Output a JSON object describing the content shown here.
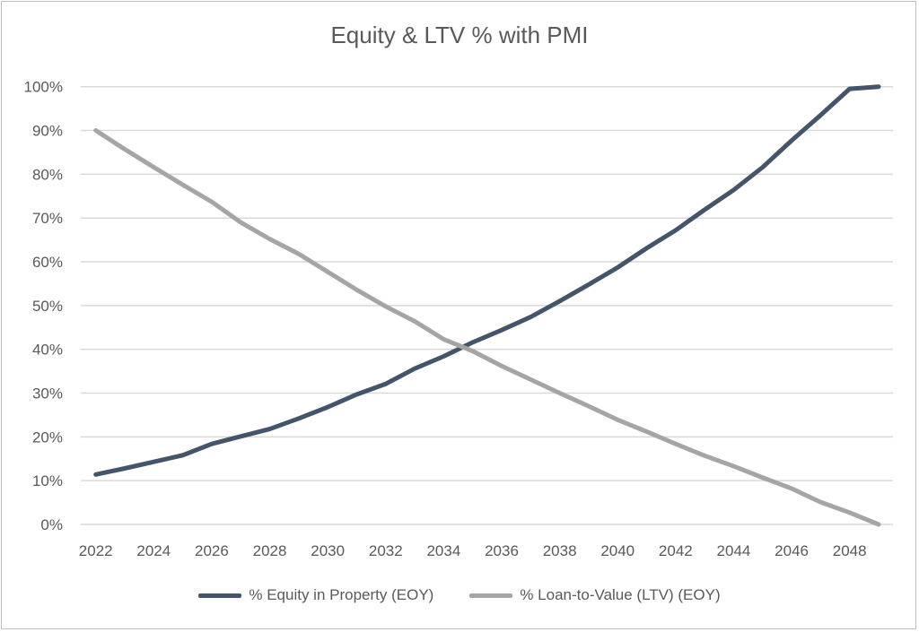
{
  "chart_data": {
    "type": "line",
    "title": "Equity & LTV % with PMI",
    "xlabel": "",
    "ylabel": "",
    "x": [
      2022,
      2023,
      2024,
      2025,
      2026,
      2027,
      2028,
      2029,
      2030,
      2031,
      2032,
      2033,
      2034,
      2035,
      2036,
      2037,
      2038,
      2039,
      2040,
      2041,
      2042,
      2043,
      2044,
      2045,
      2046,
      2047,
      2048,
      2049
    ],
    "x_tick_labels": [
      "2022",
      "2024",
      "2026",
      "2028",
      "2030",
      "2032",
      "2034",
      "2036",
      "2038",
      "2040",
      "2042",
      "2044",
      "2046",
      "2048"
    ],
    "y_tick_labels": [
      "0%",
      "10%",
      "20%",
      "30%",
      "40%",
      "50%",
      "60%",
      "70%",
      "80%",
      "90%",
      "100%"
    ],
    "ylim": [
      0,
      100
    ],
    "grid": "horizontal",
    "legend_position": "bottom",
    "series": [
      {
        "name": "% Equity in Property (EOY)",
        "color": "#44546a",
        "values": [
          11.4,
          12.8,
          14.3,
          15.8,
          18.4,
          20.1,
          21.8,
          24.2,
          26.8,
          29.7,
          32.1,
          35.6,
          38.4,
          41.6,
          44.4,
          47.4,
          51.0,
          54.8,
          58.7,
          63.1,
          67.2,
          71.9,
          76.4,
          81.6,
          87.7,
          93.5,
          99.5,
          100
        ]
      },
      {
        "name": "% Loan-to-Value (LTV) (EOY)",
        "color": "#a5a5a5",
        "values": [
          90.0,
          85.7,
          81.6,
          77.6,
          73.7,
          69.0,
          65.2,
          61.8,
          57.7,
          53.6,
          49.8,
          46.4,
          42.3,
          39.6,
          36.2,
          33.1,
          30.0,
          27.0,
          23.9,
          21.2,
          18.4,
          15.7,
          13.3,
          10.7,
          8.2,
          5.1,
          2.7,
          0
        ]
      }
    ]
  }
}
